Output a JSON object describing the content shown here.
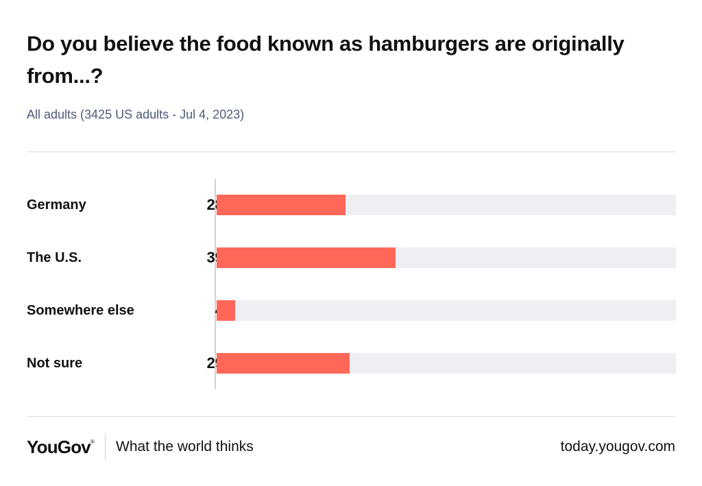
{
  "chart_data": {
    "type": "bar",
    "title": "Do you believe the food known as hamburgers are originally from...?",
    "subtitle": "All adults (3425 US adults - Jul 4, 2023)",
    "categories": [
      "Germany",
      "The U.S.",
      "Somewhere else",
      "Not sure"
    ],
    "values": [
      28,
      39,
      4,
      29
    ],
    "unit": "%",
    "xlim": [
      0,
      100
    ],
    "orientation": "horizontal",
    "bar_color": "#ff6759",
    "track_color": "#efeff3",
    "grid": false
  },
  "footer": {
    "logo": "YouGov",
    "logo_mark": "®",
    "tagline": "What the world thinks",
    "url": "today.yougov.com"
  }
}
